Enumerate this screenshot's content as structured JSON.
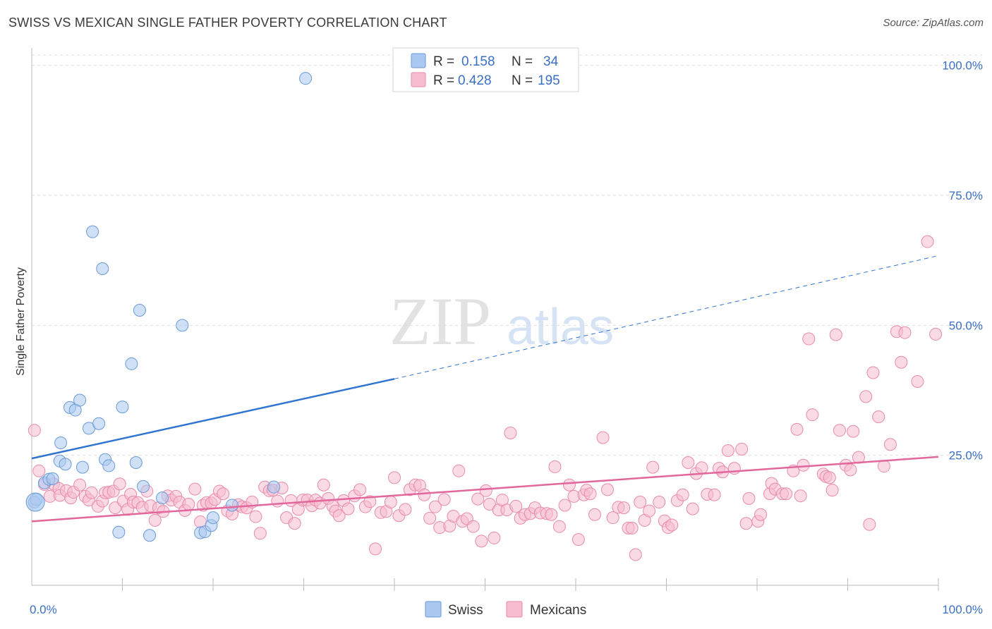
{
  "title": "SWISS VS MEXICAN SINGLE FATHER POVERTY CORRELATION CHART",
  "source": "Source: ZipAtlas.com",
  "watermark": {
    "zip": "ZIP",
    "atlas": "atlas"
  },
  "colors": {
    "swiss_fill": "#aac8f0",
    "swiss_stroke": "#6a9ad8",
    "swiss_line": "#2f74cf",
    "mex_fill": "#f6bcd0",
    "mex_stroke": "#e98aac",
    "mex_line": "#e2679a",
    "tick_text": "#3a6fc4",
    "grid": "#dddddd"
  },
  "legend": {
    "rows": [
      {
        "r_label": "R =",
        "r_value": "0.158",
        "n_label": "N =",
        "n_value": "34"
      },
      {
        "r_label": "R =",
        "r_value": "0.428",
        "n_label": "N =",
        "n_value": "195"
      }
    ]
  },
  "chart_data": {
    "type": "scatter",
    "title": "SWISS VS MEXICAN SINGLE FATHER POVERTY CORRELATION CHART",
    "xlabel": "",
    "ylabel": "Single Father Poverty",
    "xlim": [
      0,
      100
    ],
    "ylim": [
      0,
      102
    ],
    "x_tick_labels": [
      "0.0%",
      "100.0%"
    ],
    "y_ticks": [
      25,
      50,
      75,
      100
    ],
    "y_tick_labels": [
      "25.0%",
      "50.0%",
      "75.0%",
      "100.0%"
    ],
    "series": [
      {
        "name": "Swiss",
        "r": 0.158,
        "n": 34,
        "trend": {
          "x0": 0,
          "y0": 24.4,
          "x1": 40,
          "y1": 39.7,
          "dash_to_x": 100,
          "dash_to_y": 63.4
        },
        "points": [
          [
            0.3,
            16
          ],
          [
            0.5,
            16.5
          ],
          [
            1.4,
            19.7
          ],
          [
            1.9,
            20.4
          ],
          [
            2.3,
            20.5
          ],
          [
            3.1,
            23.9
          ],
          [
            3.2,
            27.4
          ],
          [
            3.7,
            23.3
          ],
          [
            4.2,
            34.2
          ],
          [
            4.8,
            33.7
          ],
          [
            5.3,
            35.6
          ],
          [
            5.6,
            22.7
          ],
          [
            6.3,
            30.2
          ],
          [
            6.7,
            68
          ],
          [
            7.4,
            31.1
          ],
          [
            7.8,
            60.9
          ],
          [
            8.1,
            24.2
          ],
          [
            8.5,
            23
          ],
          [
            9.6,
            10.2
          ],
          [
            10.0,
            34.3
          ],
          [
            11.0,
            42.6
          ],
          [
            11.5,
            23.6
          ],
          [
            11.9,
            52.9
          ],
          [
            12.3,
            19
          ],
          [
            13.0,
            9.6
          ],
          [
            14.4,
            16.8
          ],
          [
            16.6,
            50
          ],
          [
            18.6,
            10.1
          ],
          [
            19.1,
            10.3
          ],
          [
            19.8,
            11.5
          ],
          [
            20.0,
            13
          ],
          [
            22.1,
            15.4
          ],
          [
            26.7,
            18.9
          ],
          [
            30.2,
            97.5
          ]
        ]
      },
      {
        "name": "Mexicans",
        "r": 0.428,
        "n": 195,
        "trend": {
          "x0": 0,
          "y0": 12.3,
          "x1": 100,
          "y1": 24.7
        },
        "points": [
          [
            0.3,
            29.8
          ],
          [
            0.8,
            22
          ],
          [
            1.4,
            19.4
          ],
          [
            2.0,
            17.1
          ],
          [
            2.4,
            19.5
          ],
          [
            3.0,
            18.6
          ],
          [
            3.1,
            17.3
          ],
          [
            3.8,
            18.2
          ],
          [
            4.3,
            16.8
          ],
          [
            4.6,
            17.9
          ],
          [
            5.3,
            19.3
          ],
          [
            5.9,
            17.1
          ],
          [
            6.3,
            16.4
          ],
          [
            6.6,
            17.8
          ],
          [
            7.3,
            15.2
          ],
          [
            7.8,
            16.2
          ],
          [
            8.1,
            17.8
          ],
          [
            8.5,
            17.9
          ],
          [
            9.0,
            18.1
          ],
          [
            9.2,
            14.9
          ],
          [
            9.7,
            19.5
          ],
          [
            10.1,
            16.2
          ],
          [
            10.6,
            14.6
          ],
          [
            10.9,
            17.5
          ],
          [
            11.2,
            16
          ],
          [
            11.7,
            15.9
          ],
          [
            12.2,
            15
          ],
          [
            12.7,
            18.1
          ],
          [
            13.1,
            15.3
          ],
          [
            13.6,
            12.5
          ],
          [
            14.0,
            14.9
          ],
          [
            14.5,
            14.2
          ],
          [
            15.0,
            17.2
          ],
          [
            15.4,
            16.4
          ],
          [
            15.9,
            17.1
          ],
          [
            16.3,
            16
          ],
          [
            16.9,
            14.4
          ],
          [
            17.3,
            15.6
          ],
          [
            18.0,
            18.5
          ],
          [
            18.6,
            12.2
          ],
          [
            18.9,
            15.4
          ],
          [
            19.3,
            15.9
          ],
          [
            19.8,
            15.8
          ],
          [
            20.2,
            16.5
          ],
          [
            20.7,
            18.1
          ],
          [
            21.1,
            17.6
          ],
          [
            21.6,
            14.3
          ],
          [
            22.1,
            13.7
          ],
          [
            22.8,
            15.5
          ],
          [
            23.2,
            15.1
          ],
          [
            23.7,
            14.9
          ],
          [
            24.3,
            16
          ],
          [
            24.7,
            13.2
          ],
          [
            25.2,
            10
          ],
          [
            25.7,
            18.9
          ],
          [
            26.2,
            18.2
          ],
          [
            26.6,
            18.3
          ],
          [
            27.1,
            16.2
          ],
          [
            27.6,
            18.7
          ],
          [
            28.1,
            13
          ],
          [
            28.6,
            16.3
          ],
          [
            29.0,
            11.9
          ],
          [
            29.4,
            14.6
          ],
          [
            29.9,
            16.4
          ],
          [
            30.4,
            16.4
          ],
          [
            30.9,
            15.3
          ],
          [
            31.3,
            16.4
          ],
          [
            31.8,
            15.8
          ],
          [
            32.2,
            19.3
          ],
          [
            32.7,
            16.7
          ],
          [
            33.2,
            15.2
          ],
          [
            33.5,
            14.3
          ],
          [
            33.9,
            13.4
          ],
          [
            34.4,
            16.3
          ],
          [
            34.9,
            14.7
          ],
          [
            35.6,
            17.2
          ],
          [
            36.2,
            18.4
          ],
          [
            36.8,
            15.1
          ],
          [
            37.3,
            16.1
          ],
          [
            37.9,
            7
          ],
          [
            38.5,
            14
          ],
          [
            39.1,
            14.2
          ],
          [
            39.6,
            16
          ],
          [
            40.0,
            20.7
          ],
          [
            40.5,
            13.4
          ],
          [
            41.2,
            14.6
          ],
          [
            41.7,
            18.4
          ],
          [
            42.3,
            19.3
          ],
          [
            42.8,
            19.2
          ],
          [
            43.3,
            17.4
          ],
          [
            43.9,
            12.9
          ],
          [
            44.5,
            15.1
          ],
          [
            45.0,
            11.1
          ],
          [
            45.5,
            16.5
          ],
          [
            46.1,
            11.4
          ],
          [
            46.5,
            13.3
          ],
          [
            47.1,
            22
          ],
          [
            47.5,
            12.3
          ],
          [
            48.0,
            12.8
          ],
          [
            48.7,
            11.3
          ],
          [
            49.2,
            16.6
          ],
          [
            49.6,
            8.5
          ],
          [
            50.1,
            18.2
          ],
          [
            50.5,
            15.6
          ],
          [
            51.0,
            9.1
          ],
          [
            51.5,
            14.5
          ],
          [
            51.9,
            16.4
          ],
          [
            52.4,
            14.5
          ],
          [
            52.8,
            29.3
          ],
          [
            53.4,
            15.2
          ],
          [
            53.9,
            12.9
          ],
          [
            54.4,
            13.6
          ],
          [
            55.0,
            13.8
          ],
          [
            55.5,
            14.9
          ],
          [
            56.1,
            13.9
          ],
          [
            56.8,
            13.8
          ],
          [
            57.3,
            13.6
          ],
          [
            57.7,
            22.8
          ],
          [
            58.2,
            11.3
          ],
          [
            58.8,
            15.4
          ],
          [
            59.3,
            19.3
          ],
          [
            59.8,
            17.1
          ],
          [
            60.3,
            8.8
          ],
          [
            60.9,
            17.4
          ],
          [
            61.2,
            18.3
          ],
          [
            61.6,
            17.6
          ],
          [
            62.1,
            13.6
          ],
          [
            63.0,
            28.4
          ],
          [
            63.5,
            18.4
          ],
          [
            64.1,
            13
          ],
          [
            64.7,
            15
          ],
          [
            65.3,
            14.9
          ],
          [
            65.8,
            11
          ],
          [
            66.2,
            11
          ],
          [
            66.6,
            5.9
          ],
          [
            67.1,
            16
          ],
          [
            67.6,
            12.5
          ],
          [
            68.1,
            14.3
          ],
          [
            68.5,
            22.7
          ],
          [
            69.2,
            16
          ],
          [
            69.8,
            12.4
          ],
          [
            70.2,
            11.1
          ],
          [
            70.6,
            11.6
          ],
          [
            71.2,
            16.3
          ],
          [
            71.8,
            17.4
          ],
          [
            72.4,
            23.6
          ],
          [
            72.9,
            14.7
          ],
          [
            73.3,
            21.5
          ],
          [
            73.9,
            22.6
          ],
          [
            74.5,
            17.5
          ],
          [
            75.3,
            17.4
          ],
          [
            75.8,
            22.5
          ],
          [
            76.2,
            21.8
          ],
          [
            76.8,
            25.9
          ],
          [
            77.5,
            22.5
          ],
          [
            78.3,
            26.2
          ],
          [
            78.8,
            11.9
          ],
          [
            79.1,
            16.7
          ],
          [
            80.1,
            12.3
          ],
          [
            80.4,
            13.6
          ],
          [
            81.4,
            17.6
          ],
          [
            81.6,
            19.6
          ],
          [
            82.0,
            18.5
          ],
          [
            82.8,
            17.6
          ],
          [
            83.2,
            17.6
          ],
          [
            84.0,
            22
          ],
          [
            84.4,
            30
          ],
          [
            84.8,
            17.2
          ],
          [
            85.1,
            23.1
          ],
          [
            85.7,
            47.4
          ],
          [
            86.1,
            32.8
          ],
          [
            87.3,
            21.4
          ],
          [
            87.6,
            20.9
          ],
          [
            88.0,
            20.7
          ],
          [
            88.3,
            18.3
          ],
          [
            88.7,
            48.2
          ],
          [
            89.1,
            29.8
          ],
          [
            89.8,
            23.1
          ],
          [
            90.3,
            22.2
          ],
          [
            90.6,
            29.6
          ],
          [
            91.2,
            24.6
          ],
          [
            92.0,
            36.3
          ],
          [
            92.4,
            11.7
          ],
          [
            92.8,
            40.9
          ],
          [
            93.4,
            32.4
          ],
          [
            94.0,
            22.9
          ],
          [
            94.7,
            27.1
          ],
          [
            95.4,
            48.8
          ],
          [
            95.9,
            42.9
          ],
          [
            96.3,
            48.6
          ],
          [
            97.7,
            39.2
          ],
          [
            98.8,
            66.1
          ],
          [
            99.7,
            48.3
          ]
        ]
      }
    ],
    "bottom_legend": [
      "Swiss",
      "Mexicans"
    ]
  }
}
